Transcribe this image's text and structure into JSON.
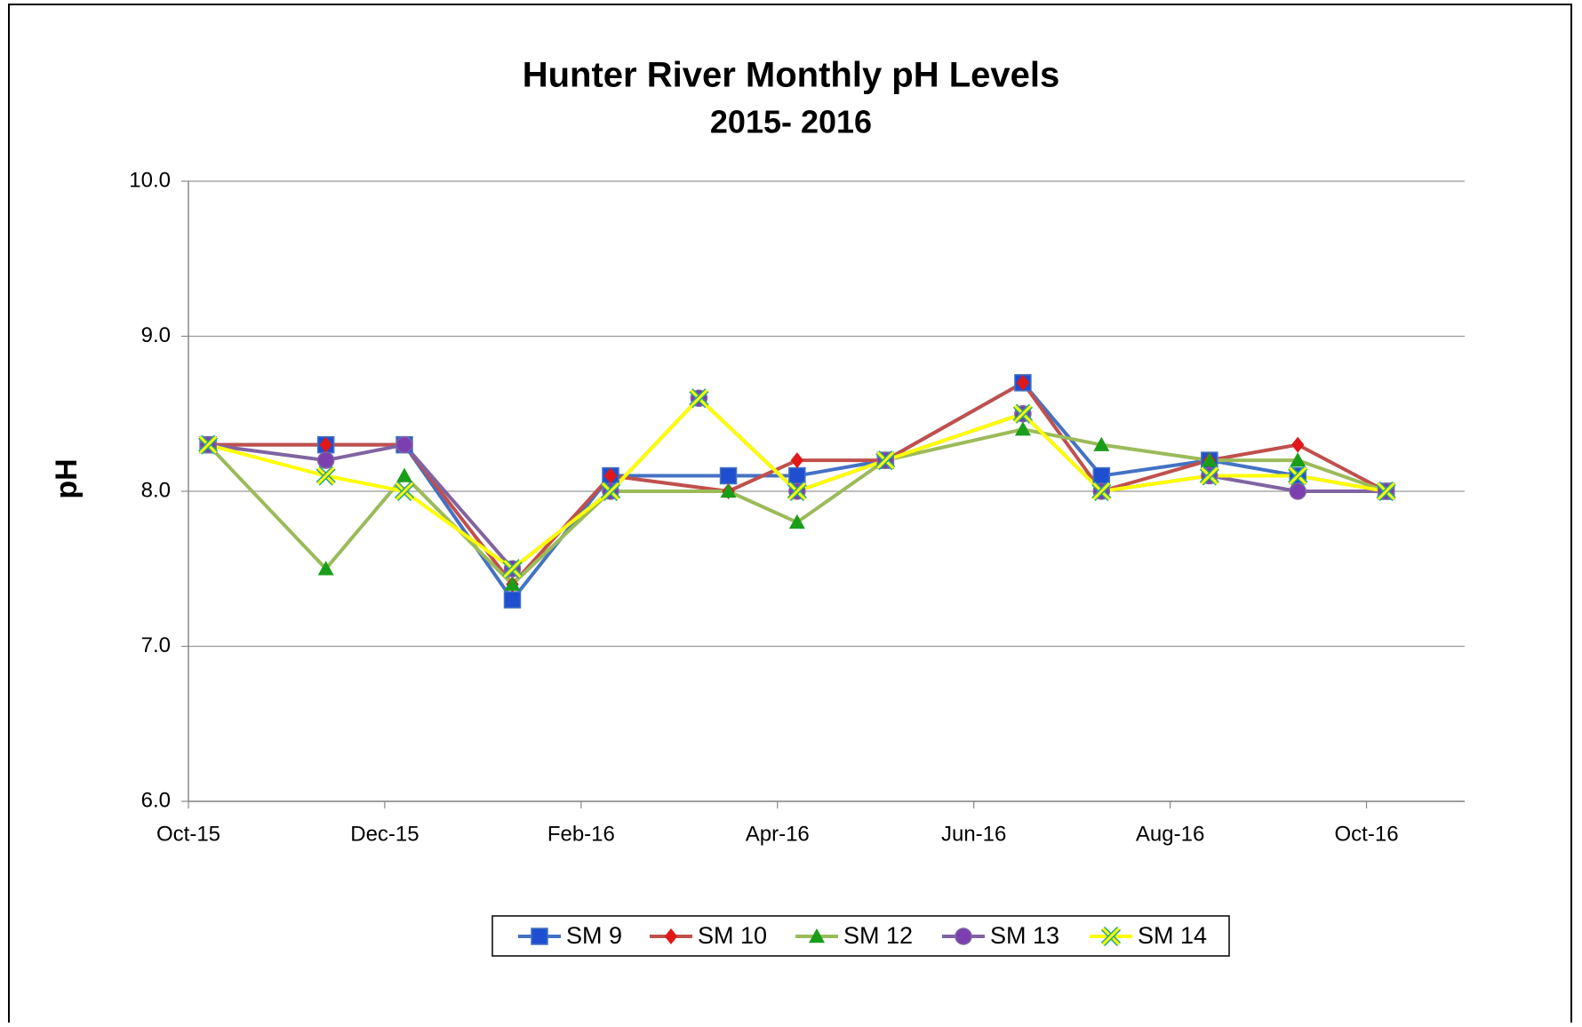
{
  "chart_data": {
    "type": "line",
    "title": "Hunter River Monthly pH Levels",
    "subtitle": "2015- 2016",
    "y_label": "pH",
    "xlim": [
      0,
      13
    ],
    "xticks": [
      {
        "value": 0,
        "label": "Oct-15"
      },
      {
        "value": 2,
        "label": "Dec-15"
      },
      {
        "value": 4,
        "label": "Feb-16"
      },
      {
        "value": 6,
        "label": "Apr-16"
      },
      {
        "value": 8,
        "label": "Jun-16"
      },
      {
        "value": 10,
        "label": "Aug-16"
      },
      {
        "value": 12,
        "label": "Oct-16"
      }
    ],
    "ylim": [
      6,
      10
    ],
    "yticks": [
      {
        "value": 6,
        "label": "6.0"
      },
      {
        "value": 7,
        "label": "7.0"
      },
      {
        "value": 8,
        "label": "8.0"
      },
      {
        "value": 9,
        "label": "9.0"
      },
      {
        "value": 10,
        "label": "10.0"
      }
    ],
    "grid": true,
    "legend": "bottom",
    "series": [
      {
        "name": "SM 9",
        "color": "#4472c4",
        "marker": "square",
        "marker_color": "#1f4fd0",
        "x": [
          0.2,
          1.4,
          2.2,
          3.3,
          4.3,
          5.5,
          6.2,
          7.1,
          8.5,
          9.3,
          10.4,
          11.3,
          12.2
        ],
        "values": [
          8.3,
          8.3,
          8.3,
          7.3,
          8.1,
          8.1,
          8.1,
          8.2,
          8.7,
          8.1,
          8.2,
          8.1,
          8.0
        ]
      },
      {
        "name": "SM 10",
        "color": "#c0504d",
        "marker": "diamond",
        "marker_color": "#e01818",
        "x": [
          0.2,
          1.4,
          2.2,
          3.3,
          4.3,
          5.5,
          6.2,
          7.1,
          8.5,
          9.3,
          10.4,
          11.3,
          12.2
        ],
        "values": [
          8.3,
          8.3,
          8.3,
          7.4,
          8.1,
          8.0,
          8.2,
          8.2,
          8.7,
          8.0,
          8.2,
          8.3,
          8.0
        ]
      },
      {
        "name": "SM 12",
        "color": "#9bbb59",
        "marker": "triangle",
        "marker_color": "#1a9e1a",
        "x": [
          0.2,
          1.4,
          2.2,
          3.3,
          4.3,
          5.5,
          6.2,
          7.1,
          8.5,
          9.3,
          10.4,
          11.3,
          12.2
        ],
        "values": [
          8.3,
          7.5,
          8.1,
          7.4,
          8.0,
          8.0,
          7.8,
          8.2,
          8.4,
          8.3,
          8.2,
          8.2,
          8.0
        ]
      },
      {
        "name": "SM 13",
        "color": "#8064a2",
        "marker": "circle",
        "marker_color": "#7b3fb0",
        "x": [
          0.2,
          1.4,
          2.2,
          3.3,
          4.3,
          5.2,
          6.2,
          7.1,
          8.5,
          9.3,
          10.4,
          11.3,
          12.2
        ],
        "values": [
          8.3,
          8.2,
          8.3,
          7.5,
          8.0,
          8.6,
          8.0,
          8.2,
          8.5,
          8.0,
          8.1,
          8.0,
          8.0
        ]
      },
      {
        "name": "SM 14",
        "color": "#ffff00",
        "marker": "x",
        "marker_color": "#2aa58a",
        "x": [
          0.2,
          1.4,
          2.2,
          3.3,
          4.3,
          5.2,
          6.2,
          7.1,
          8.5,
          9.3,
          10.4,
          11.3,
          12.2
        ],
        "values": [
          8.3,
          8.1,
          8.0,
          7.5,
          8.0,
          8.6,
          8.0,
          8.2,
          8.5,
          8.0,
          8.1,
          8.1,
          8.0
        ]
      }
    ]
  }
}
